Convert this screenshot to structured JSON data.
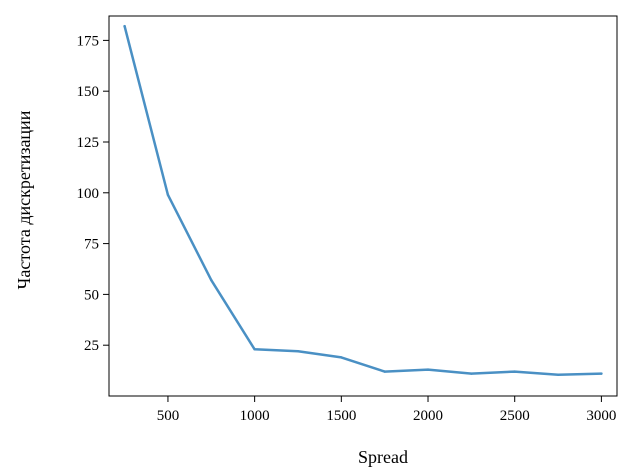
{
  "chart_data": {
    "type": "line",
    "title": "",
    "xlabel": "Spread",
    "ylabel": "Частота дискретизации",
    "xlim": [
      160,
      3090
    ],
    "ylim": [
      0,
      187
    ],
    "xticks": [
      500,
      1000,
      1500,
      2000,
      2500,
      3000
    ],
    "yticks": [
      25,
      50,
      75,
      100,
      125,
      150,
      175
    ],
    "grid": false,
    "legend": "none",
    "series": [
      {
        "color": "#4a90c4",
        "x": [
          250,
          500,
          750,
          1000,
          1250,
          1500,
          1750,
          2000,
          2250,
          2500,
          2750,
          3000
        ],
        "y": [
          182,
          99,
          57,
          23,
          22,
          19,
          12,
          13,
          11,
          12,
          10.5,
          11
        ]
      }
    ]
  }
}
